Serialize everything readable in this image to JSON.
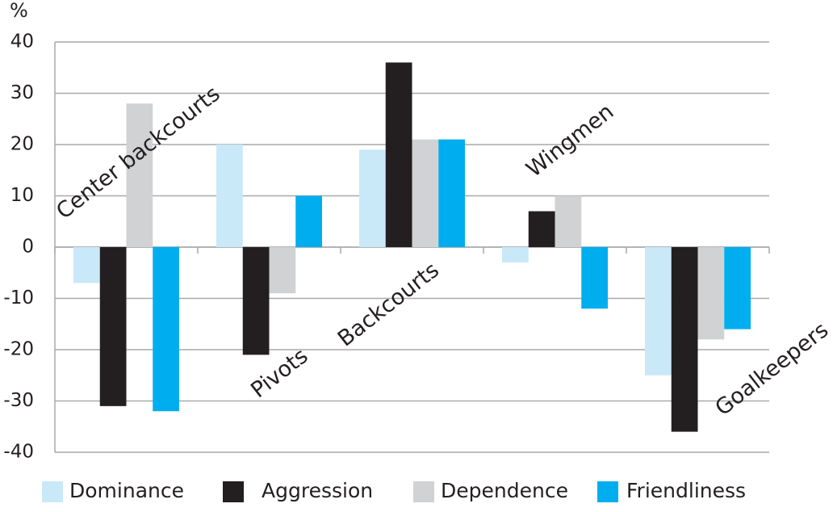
{
  "chart_data": {
    "type": "bar",
    "y_label": "%",
    "categories": [
      "Center backcourts",
      "Pivots",
      "Backcourts",
      "Wingmen",
      "Goalkeepers"
    ],
    "series": [
      {
        "name": "Dominance",
        "color": "#c9e9f8",
        "values": [
          -7,
          20,
          19,
          -3,
          -25
        ]
      },
      {
        "name": "Aggression",
        "color": "#231f20",
        "values": [
          -31,
          -21,
          36,
          7,
          -36
        ]
      },
      {
        "name": "Dependence",
        "color": "#d1d2d4",
        "values": [
          28,
          -9,
          21,
          10,
          -18
        ]
      },
      {
        "name": "Friendliness",
        "color": "#00aeef",
        "values": [
          -32,
          10,
          21,
          -12,
          -16
        ]
      }
    ],
    "ylim": [
      -40,
      40
    ],
    "yticks": [
      -40,
      -30,
      -20,
      -10,
      0,
      10,
      20,
      30,
      40
    ],
    "grid": true,
    "legend": "bottom"
  }
}
